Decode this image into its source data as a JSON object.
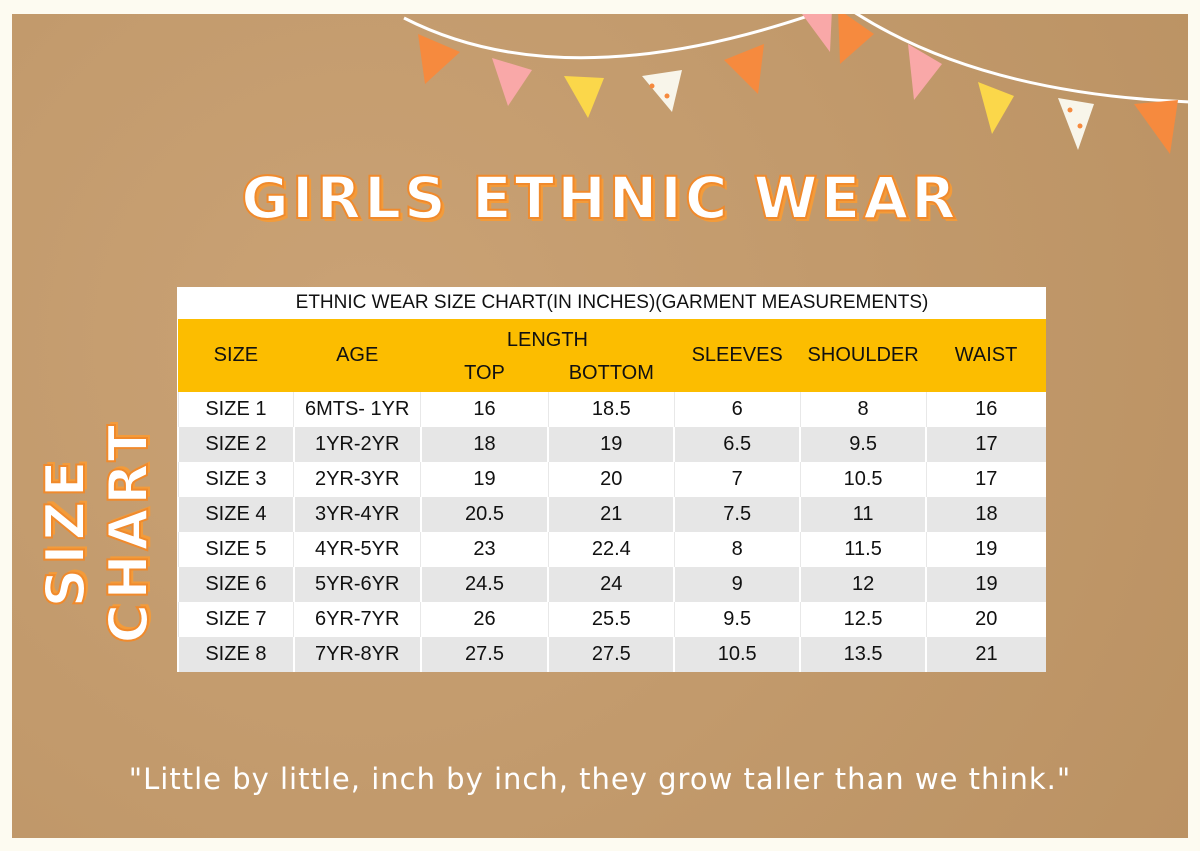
{
  "heading": "GIRLS ETHNIC WEAR",
  "side_label": "SIZE CHART",
  "quote": "\"Little by little, inch by inch, they grow taller than we think.\"",
  "colors": {
    "background": "#c29a6c",
    "header": "#fcbd00",
    "accent": "#f08a2c"
  },
  "table": {
    "caption": "ETHNIC WEAR SIZE CHART(IN INCHES)(GARMENT MEASUREMENTS)",
    "headers": {
      "size": "SIZE",
      "age": "AGE",
      "length": "LENGTH",
      "top": "TOP",
      "bottom": "BOTTOM",
      "sleeves": "SLEEVES",
      "shoulder": "SHOULDER",
      "waist": "WAIST"
    },
    "rows": [
      [
        "SIZE 1",
        "6MTS- 1YR",
        "16",
        "18.5",
        "6",
        "8",
        "16"
      ],
      [
        "SIZE 2",
        "1YR-2YR",
        "18",
        "19",
        "6.5",
        "9.5",
        "17"
      ],
      [
        "SIZE 3",
        "2YR-3YR",
        "19",
        "20",
        "7",
        "10.5",
        "17"
      ],
      [
        "SIZE 4",
        "3YR-4YR",
        "20.5",
        "21",
        "7.5",
        "11",
        "18"
      ],
      [
        "SIZE 5",
        "4YR-5YR",
        "23",
        "22.4",
        "8",
        "11.5",
        "19"
      ],
      [
        "SIZE 6",
        "5YR-6YR",
        "24.5",
        "24",
        "9",
        "12",
        "19"
      ],
      [
        "SIZE 7",
        "6YR-7YR",
        "26",
        "25.5",
        "9.5",
        "12.5",
        "20"
      ],
      [
        "SIZE 8",
        "7YR-8YR",
        "27.5",
        "27.5",
        "10.5",
        "13.5",
        "21"
      ]
    ]
  }
}
